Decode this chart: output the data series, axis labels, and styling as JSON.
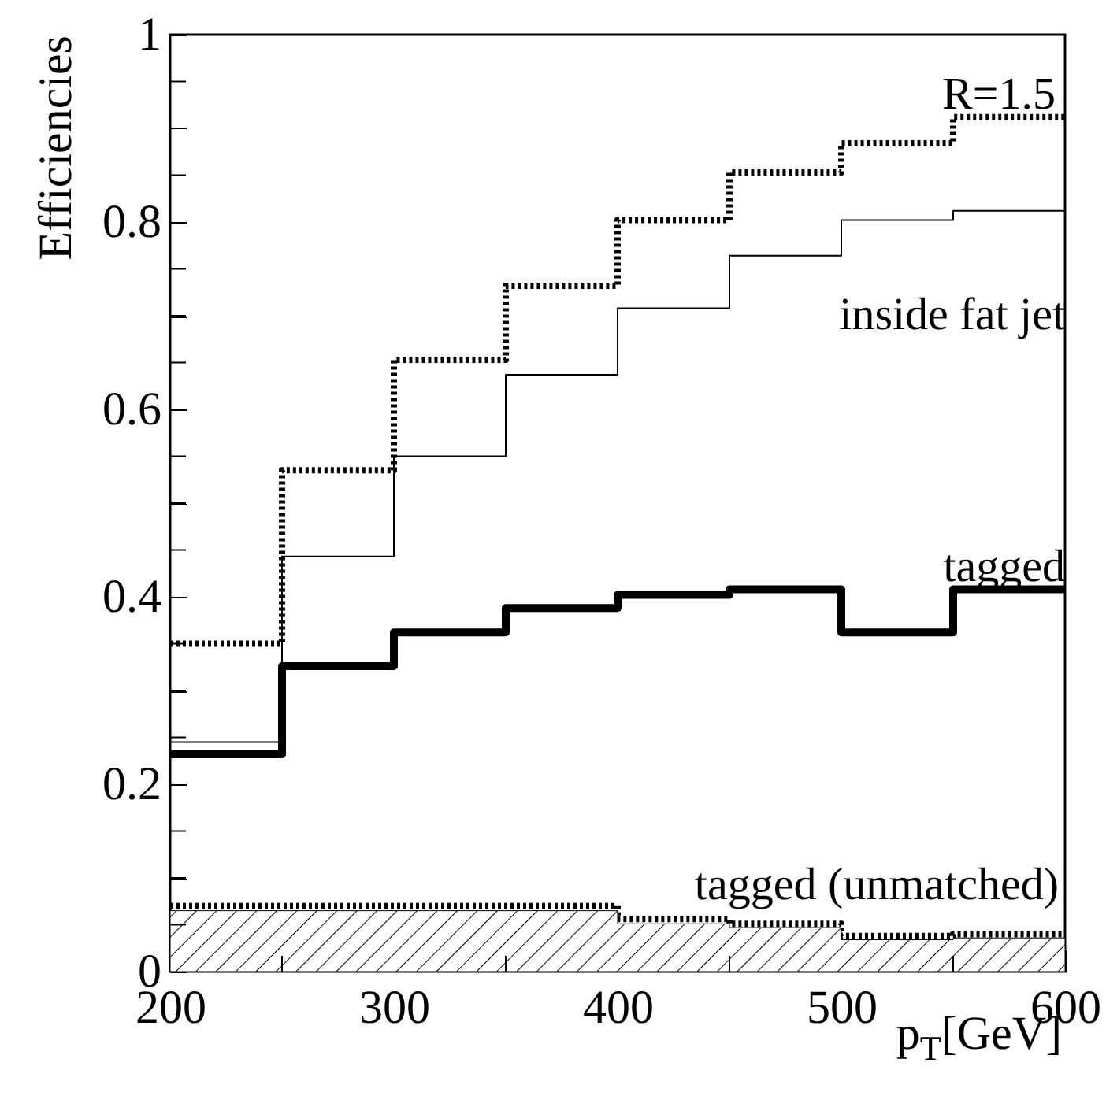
{
  "chart_data": {
    "type": "step",
    "ylabel": "Efficiencies",
    "xlabel": "p$_{T}$[GeV]",
    "x": [
      200,
      250,
      300,
      350,
      400,
      450,
      500,
      550,
      600
    ],
    "series": [
      {
        "color": "#000000",
        "line_style": "dotted",
        "values": [
          0.35,
          0.535,
          0.653,
          0.732,
          0.802,
          0.853,
          0.884,
          0.912,
          0.912
        ]
      },
      {
        "color": "#000000",
        "line_style": "solid",
        "values": [
          0.245,
          0.443,
          0.55,
          0.637,
          0.708,
          0.764,
          0.802,
          0.812,
          0.812
        ]
      },
      {
        "color": "#000000",
        "line_style": "solid",
        "values": [
          0.232,
          0.326,
          0.362,
          0.388,
          0.402,
          0.408,
          0.362,
          0.408,
          0.408
        ]
      },
      {
        "color": "#000000",
        "line_style": "dotted",
        "values": [
          0.07,
          0.07,
          0.07,
          0.07,
          0.056,
          0.051,
          0.038,
          0.04,
          0.04
        ]
      },
      {
        "type": "area",
        "color": "#000000",
        "values": [
          0.065,
          0.065,
          0.065,
          0.065,
          0.051,
          0.047,
          0.034,
          0.036,
          0.036
        ]
      }
    ],
    "annotations": [
      "R=1.5",
      "inside fat jet",
      "tagged",
      "tagged (unmatched)"
    ],
    "xlim": [
      200,
      600
    ],
    "ylim": [
      0,
      1
    ],
    "xticks": [
      200,
      {
        "value": 250,
        "label": null
      },
      300,
      {
        "value": 350,
        "label": null
      },
      400,
      {
        "value": 450,
        "label": null
      },
      500,
      {
        "value": 550,
        "label": null
      },
      600
    ],
    "yticks": [
      0,
      {
        "value": 0.05,
        "label": null
      },
      {
        "value": 0.1,
        "label": null
      },
      {
        "value": 0.15,
        "label": null
      },
      0.2,
      {
        "value": 0.25,
        "label": null
      },
      {
        "value": 0.3,
        "label": null
      },
      {
        "value": 0.35,
        "label": null
      },
      0.4,
      {
        "value": 0.45,
        "label": null
      },
      {
        "value": 0.5,
        "label": null
      },
      {
        "value": 0.55,
        "label": null
      },
      0.6,
      {
        "value": 0.65,
        "label": null
      },
      {
        "value": 0.7,
        "label": null
      },
      {
        "value": 0.75,
        "label": null
      },
      0.8,
      {
        "value": 0.85,
        "label": null
      },
      {
        "value": 0.9,
        "label": null
      },
      {
        "value": 0.95,
        "label": null
      },
      1
    ],
    "grid": false
  }
}
